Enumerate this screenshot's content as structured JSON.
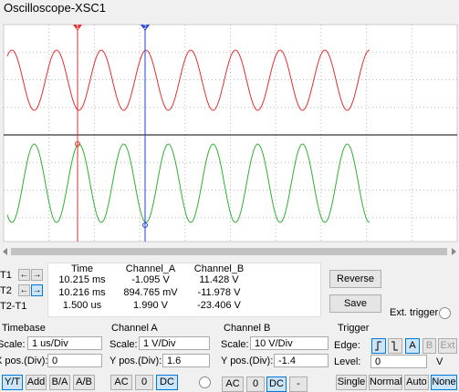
{
  "title": "Oscilloscope-XSC1",
  "cursors": [
    "1",
    "2"
  ],
  "readout": {
    "row_labels": [
      "T1",
      "T2",
      "T2-T1"
    ],
    "headers": [
      "Time",
      "Channel_A",
      "Channel_B"
    ],
    "rows": [
      [
        "10.215 ms",
        "-1.095 V",
        "11.428 V"
      ],
      [
        "10.216 ms",
        "894.765 mV",
        "-11.978 V"
      ],
      [
        "1.500 us",
        "1.990 V",
        "-23.406 V"
      ]
    ]
  },
  "buttons": {
    "reverse": "Reverse",
    "save": "Save"
  },
  "ext_trigger": "Ext. trigger",
  "timebase": {
    "title": "Timebase",
    "scale_label": "Scale:",
    "scale": "1 us/Div",
    "xpos_label": "X pos.(Div):",
    "xpos": "0",
    "modes": [
      "Y/T",
      "Add",
      "B/A",
      "A/B"
    ]
  },
  "channel_a": {
    "title": "Channel A",
    "scale_label": "Scale:",
    "scale": "1 V/Div",
    "ypos_label": "Y pos.(Div):",
    "ypos": "1.6",
    "coupling": [
      "AC",
      "0",
      "DC"
    ]
  },
  "channel_b": {
    "title": "Channel B",
    "scale_label": "Scale:",
    "scale": "10 V/Div",
    "ypos_label": "Y pos.(Div):",
    "ypos": "-1.4",
    "coupling": [
      "AC",
      "0",
      "DC",
      "-"
    ]
  },
  "trigger": {
    "title": "Trigger",
    "edge_label": "Edge:",
    "sources": [
      "A",
      "B",
      "Ext"
    ],
    "level_label": "Level:",
    "level": "0",
    "level_unit": "V",
    "modes": [
      "Single",
      "Normal",
      "Auto",
      "None"
    ]
  }
}
